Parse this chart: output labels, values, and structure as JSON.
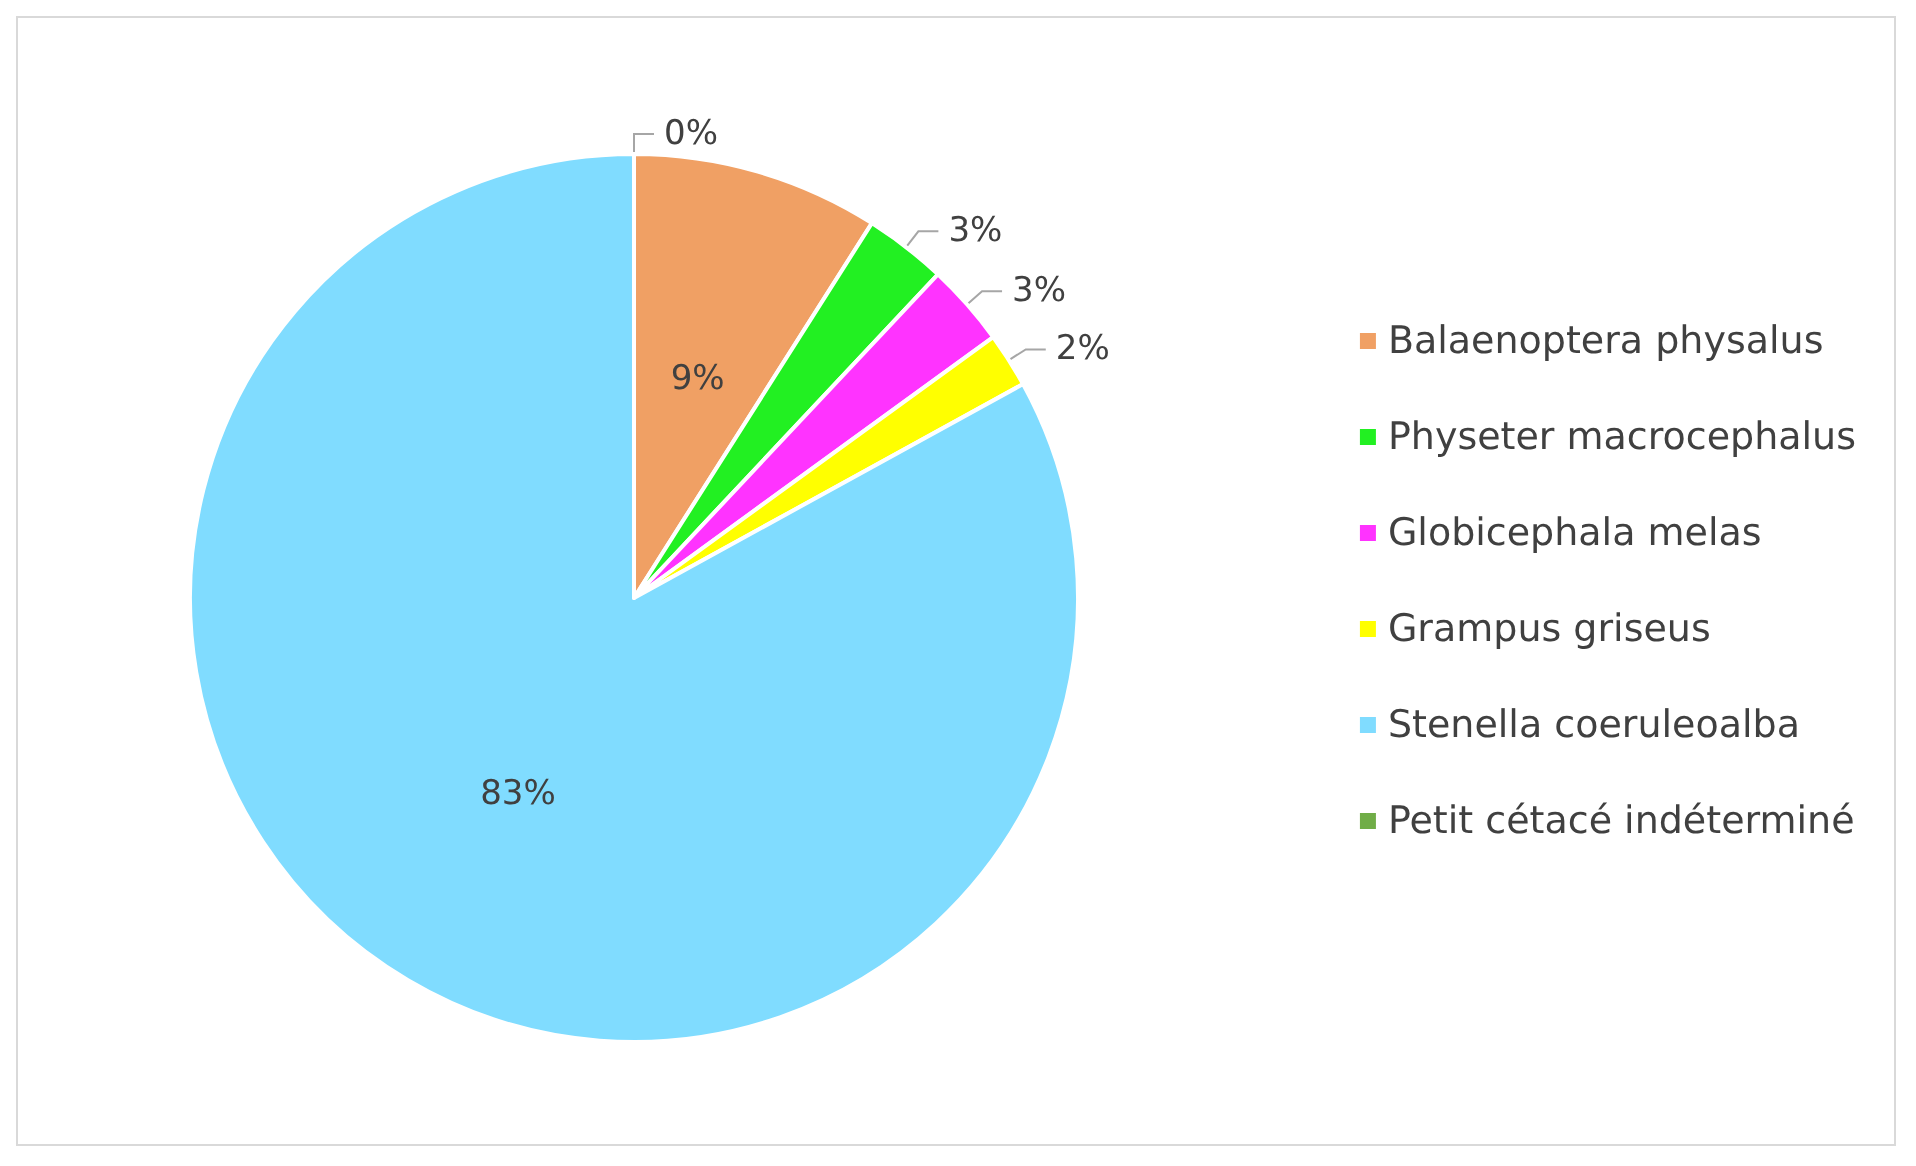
{
  "chart_data": {
    "type": "pie",
    "categories": [
      "Balaenoptera physalus",
      "Physeter macrocephalus",
      "Globicephala melas",
      "Grampus griseus",
      "Stenella coeruleoalba",
      "Petit cétacé indéterminé"
    ],
    "values": [
      9,
      3,
      3,
      2,
      83,
      0
    ],
    "value_labels": [
      "9%",
      "3%",
      "3%",
      "2%",
      "83%",
      "0%"
    ],
    "colors": [
      "#f0a064",
      "#22f022",
      "#ff33ff",
      "#ffff00",
      "#80dcff",
      "#70ad47"
    ],
    "legend": "right"
  }
}
